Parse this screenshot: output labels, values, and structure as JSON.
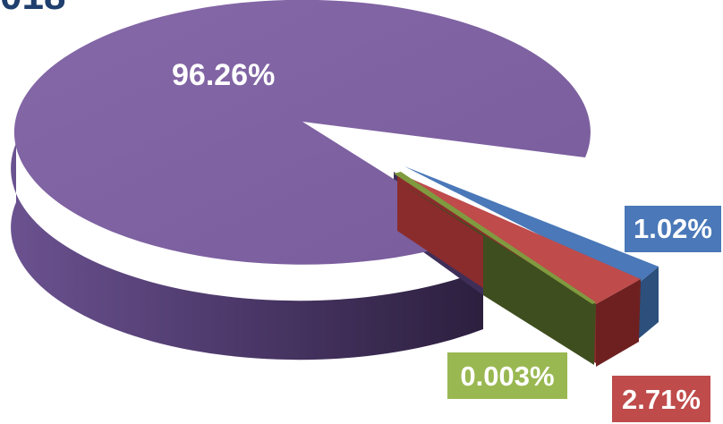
{
  "title_fragment": "018",
  "chart_data": {
    "type": "pie",
    "title": "",
    "legend": "none",
    "slices": [
      {
        "label": "96.26%",
        "value": 96.26,
        "color": "#7b5f9e",
        "side_color": "#5a4478",
        "label_bg": ""
      },
      {
        "label": "1.02%",
        "value": 1.02,
        "color": "#4a78b8",
        "side_color": "#2c4f7c",
        "label_bg": "#4a78b8"
      },
      {
        "label": "2.71%",
        "value": 2.71,
        "color": "#bf4b4b",
        "side_color": "#6e2020",
        "label_bg": "#bf4b4b"
      },
      {
        "label": "0.003%",
        "value": 0.003,
        "color": "#7f9a3f",
        "side_color": "#3e4e1f",
        "label_bg": "#9ab852"
      }
    ]
  }
}
